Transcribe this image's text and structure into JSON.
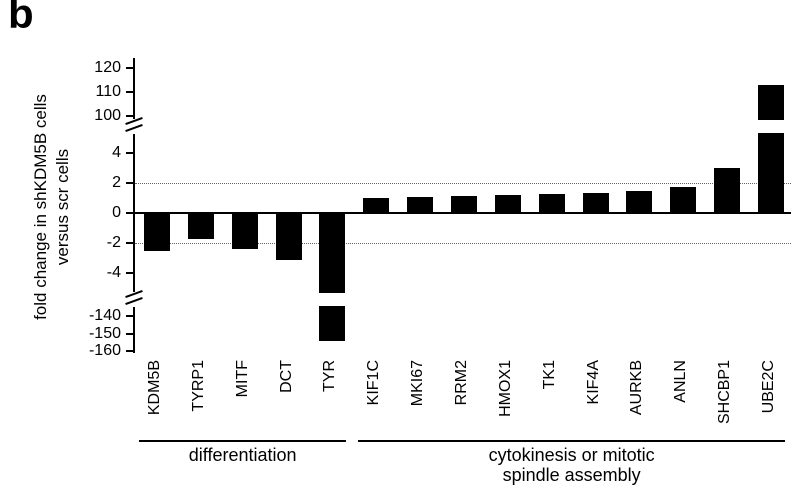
{
  "panel_label": "b",
  "chart_data": {
    "type": "bar",
    "ylabel_lines": [
      "fold change in shKDM5B cells",
      "versus scr cells"
    ],
    "bar_color": "#000000",
    "categories": [
      "KDM5B",
      "TYRP1",
      "MITF",
      "DCT",
      "TYR",
      "KIF1C",
      "MKI67",
      "RRM2",
      "HMOX1",
      "TK1",
      "KIF4A",
      "AURKB",
      "ANLN",
      "SHCBP1",
      "UBE2C"
    ],
    "values": [
      -2.5,
      -1.7,
      -2.4,
      -3.1,
      -154,
      1.0,
      1.1,
      1.15,
      1.2,
      1.3,
      1.35,
      1.5,
      1.75,
      3.0,
      113
    ],
    "axis_segments": [
      {
        "range": [
          100,
          120
        ],
        "ticks": [
          100,
          110,
          120
        ]
      },
      {
        "range": [
          -4,
          4
        ],
        "ticks": [
          -4,
          -2,
          0,
          2,
          4
        ]
      },
      {
        "range": [
          -160,
          -140
        ],
        "ticks": [
          -160,
          -150,
          -140
        ]
      }
    ],
    "reference_lines": [
      2,
      -2
    ],
    "groups": [
      {
        "label_lines": [
          "differentiation"
        ],
        "start": 0,
        "end": 4
      },
      {
        "label_lines": [
          "cytokinesis or mitotic",
          "spindle assembly"
        ],
        "start": 5,
        "end": 14
      }
    ],
    "legend": "none",
    "grid": "off"
  }
}
